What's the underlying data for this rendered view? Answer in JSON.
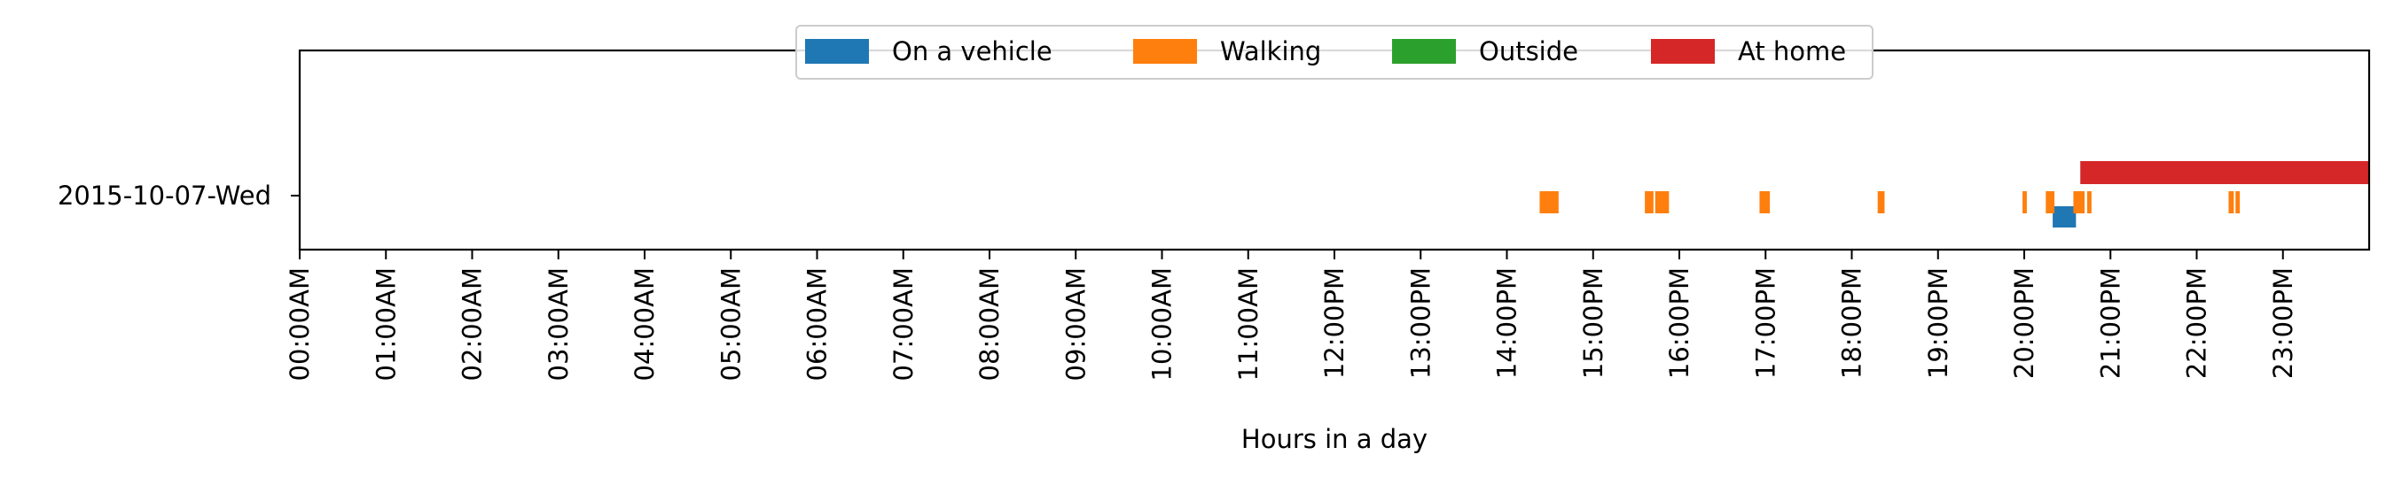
{
  "chart_data": {
    "type": "timeline",
    "title": "",
    "xlabel": "Hours in a day",
    "ylabel": "",
    "xlim": [
      0,
      24
    ],
    "categories": [
      "2015-10-07-Wed"
    ],
    "xticks": [
      {
        "value": 0,
        "label": "00:00AM"
      },
      {
        "value": 1,
        "label": "01:00AM"
      },
      {
        "value": 2,
        "label": "02:00AM"
      },
      {
        "value": 3,
        "label": "03:00AM"
      },
      {
        "value": 4,
        "label": "04:00AM"
      },
      {
        "value": 5,
        "label": "05:00AM"
      },
      {
        "value": 6,
        "label": "06:00AM"
      },
      {
        "value": 7,
        "label": "07:00AM"
      },
      {
        "value": 8,
        "label": "08:00AM"
      },
      {
        "value": 9,
        "label": "09:00AM"
      },
      {
        "value": 10,
        "label": "10:00AM"
      },
      {
        "value": 11,
        "label": "11:00AM"
      },
      {
        "value": 12,
        "label": "12:00PM"
      },
      {
        "value": 13,
        "label": "13:00PM"
      },
      {
        "value": 14,
        "label": "14:00PM"
      },
      {
        "value": 15,
        "label": "15:00PM"
      },
      {
        "value": 16,
        "label": "16:00PM"
      },
      {
        "value": 17,
        "label": "17:00PM"
      },
      {
        "value": 18,
        "label": "18:00PM"
      },
      {
        "value": 19,
        "label": "19:00PM"
      },
      {
        "value": 20,
        "label": "20:00PM"
      },
      {
        "value": 21,
        "label": "21:00PM"
      },
      {
        "value": 22,
        "label": "22:00PM"
      },
      {
        "value": 23,
        "label": "23:00PM"
      }
    ],
    "legend_position": "top-center",
    "series": [
      {
        "name": "On a vehicle",
        "color": "#1f77b4",
        "lane": "lower",
        "intervals": [
          [
            20.33,
            20.6
          ]
        ]
      },
      {
        "name": "Walking",
        "color": "#ff7f0e",
        "lane": "middle",
        "intervals": [
          [
            14.38,
            14.6
          ],
          [
            15.6,
            15.7
          ],
          [
            15.72,
            15.88
          ],
          [
            16.93,
            17.05
          ],
          [
            18.3,
            18.38
          ],
          [
            19.98,
            20.03
          ],
          [
            20.25,
            20.35
          ],
          [
            20.57,
            20.7
          ],
          [
            20.73,
            20.78
          ],
          [
            22.37,
            22.43
          ],
          [
            22.45,
            22.5
          ]
        ]
      },
      {
        "name": "Outside",
        "color": "#2ca02c",
        "lane": "middle",
        "intervals": []
      },
      {
        "name": "At home",
        "color": "#d62728",
        "lane": "upper",
        "intervals": [
          [
            20.65,
            24.0
          ]
        ]
      }
    ]
  }
}
